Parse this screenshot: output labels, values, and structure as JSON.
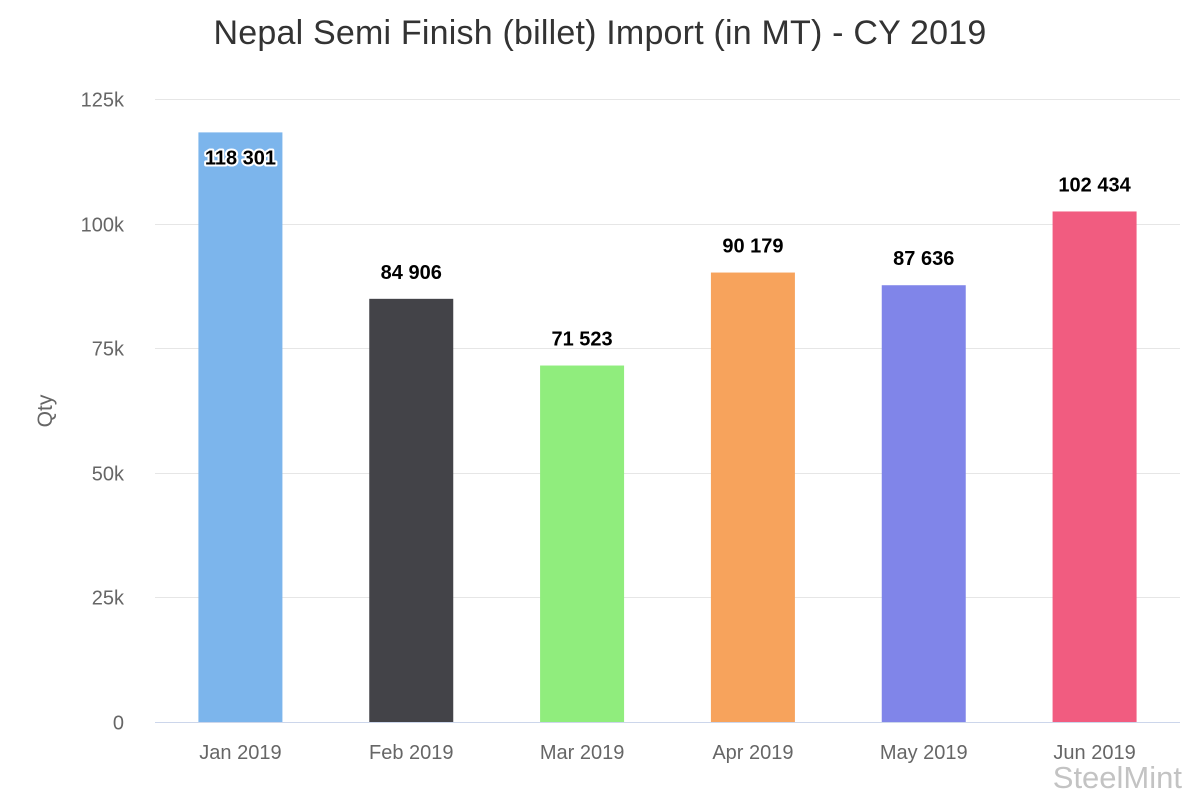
{
  "chart_data": {
    "type": "bar",
    "title": "Nepal Semi Finish (billet) Import (in MT) - CY 2019",
    "xlabel": "",
    "ylabel": "Qty",
    "categories": [
      "Jan 2019",
      "Feb 2019",
      "Mar 2019",
      "Apr 2019",
      "May 2019",
      "Jun 2019"
    ],
    "values": [
      118301,
      84906,
      71523,
      90179,
      87636,
      102434
    ],
    "data_labels": [
      "118 301",
      "84 906",
      "71 523",
      "90 179",
      "87 636",
      "102 434"
    ],
    "colors": [
      "#7cb5ec",
      "#434348",
      "#90ed7d",
      "#f7a35c",
      "#8085e9",
      "#f15c80"
    ],
    "ylim": [
      0,
      125000
    ],
    "yticks": [
      0,
      25000,
      50000,
      75000,
      100000,
      125000
    ],
    "ytick_labels": [
      "0",
      "25k",
      "50k",
      "75k",
      "100k",
      "125k"
    ],
    "grid": true,
    "legend": false
  },
  "watermark": "SteelMint"
}
